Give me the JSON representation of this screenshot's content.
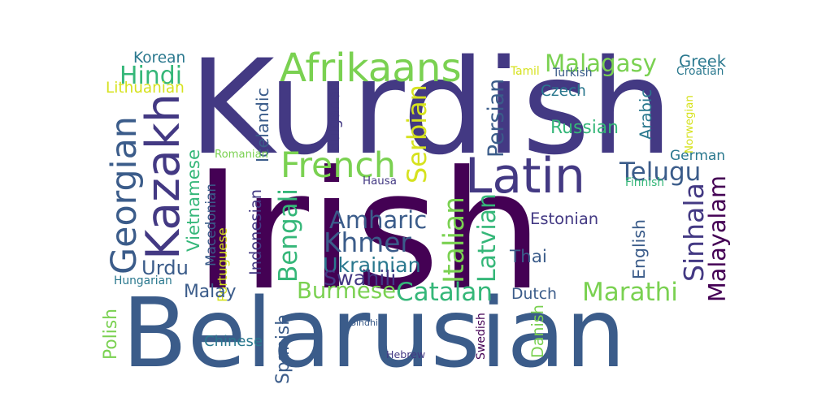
{
  "words": [
    {
      "text": "Irish",
      "color": "#440154"
    },
    {
      "text": "Kurdish",
      "color": "#433983"
    },
    {
      "text": "Belarusian",
      "color": "#3b5c8a"
    },
    {
      "text": "Latin",
      "color": "#433983"
    },
    {
      "text": "Afrikaans",
      "color": "#7ad151"
    },
    {
      "text": "French",
      "color": "#7ad151"
    },
    {
      "text": "Kazakh",
      "color": "#433983"
    },
    {
      "text": "Georgian",
      "color": "#3b5c8a"
    },
    {
      "text": "Khmer",
      "color": "#3b5c8a"
    },
    {
      "text": "Persian",
      "color": "#3b5c8a"
    },
    {
      "text": "Serbian",
      "color": "#d6e21e"
    },
    {
      "text": "Italian",
      "color": "#7ad151"
    },
    {
      "text": "Malagasy",
      "color": "#7ad151"
    },
    {
      "text": "Hindi",
      "color": "#35b779"
    },
    {
      "text": "Amharic",
      "color": "#3b5c8a"
    },
    {
      "text": "Bengali",
      "color": "#35b779"
    },
    {
      "text": "Telugu",
      "color": "#3b5c8a"
    },
    {
      "text": "Sinhala",
      "color": "#433983"
    },
    {
      "text": "Malayalam",
      "color": "#440154"
    },
    {
      "text": "Catalan",
      "color": "#35b779"
    },
    {
      "text": "Burmese",
      "color": "#7ad151"
    },
    {
      "text": "Marathi",
      "color": "#7ad151"
    },
    {
      "text": "Ukrainian",
      "color": "#2a788e"
    },
    {
      "text": "Swahili",
      "color": "#433983"
    },
    {
      "text": "Latvian",
      "color": "#35b779"
    },
    {
      "text": "Urdu",
      "color": "#3b5c8a"
    },
    {
      "text": "Russian",
      "color": "#35b779"
    },
    {
      "text": "Czech",
      "color": "#2a788e"
    },
    {
      "text": "Greek",
      "color": "#2a788e"
    },
    {
      "text": "Korean",
      "color": "#2a788e"
    },
    {
      "text": "Lithuanian",
      "color": "#d6e21e"
    },
    {
      "text": "Icelandic",
      "color": "#3b5c8a"
    },
    {
      "text": "Bulgarian",
      "color": "#433983"
    },
    {
      "text": "Arabic",
      "color": "#2a788e"
    },
    {
      "text": "German",
      "color": "#2a788e"
    },
    {
      "text": "Vietnamese",
      "color": "#35b779"
    },
    {
      "text": "Macedonian",
      "color": "#3b5c8a"
    },
    {
      "text": "Portuguese",
      "color": "#d6e21e"
    },
    {
      "text": "Indonesian",
      "color": "#433983"
    },
    {
      "text": "Estonian",
      "color": "#433983"
    },
    {
      "text": "Thai",
      "color": "#3b5c8a"
    },
    {
      "text": "English",
      "color": "#3b5c8a"
    },
    {
      "text": "Malay",
      "color": "#3b5c8a"
    },
    {
      "text": "Dutch",
      "color": "#3b5c8a"
    },
    {
      "text": "Chinese",
      "color": "#2a788e"
    },
    {
      "text": "Spanish",
      "color": "#3b5c8a"
    },
    {
      "text": "Polish",
      "color": "#7ad151"
    },
    {
      "text": "Danish",
      "color": "#7ad151"
    },
    {
      "text": "Swedish",
      "color": "#440154"
    },
    {
      "text": "Hebrew",
      "color": "#433983"
    },
    {
      "text": "Hungarian",
      "color": "#2a788e"
    },
    {
      "text": "Romanian",
      "color": "#7ad151"
    },
    {
      "text": "Hausa",
      "color": "#433983"
    },
    {
      "text": "Sindhi",
      "color": "#3b5c8a"
    },
    {
      "text": "Tamil",
      "color": "#d6e21e"
    },
    {
      "text": "Turkish",
      "color": "#3b5c8a"
    },
    {
      "text": "Croatian",
      "color": "#2a788e"
    },
    {
      "text": "Norwegian",
      "color": "#d6e21e"
    },
    {
      "text": "Finnish",
      "color": "#35b779"
    }
  ]
}
